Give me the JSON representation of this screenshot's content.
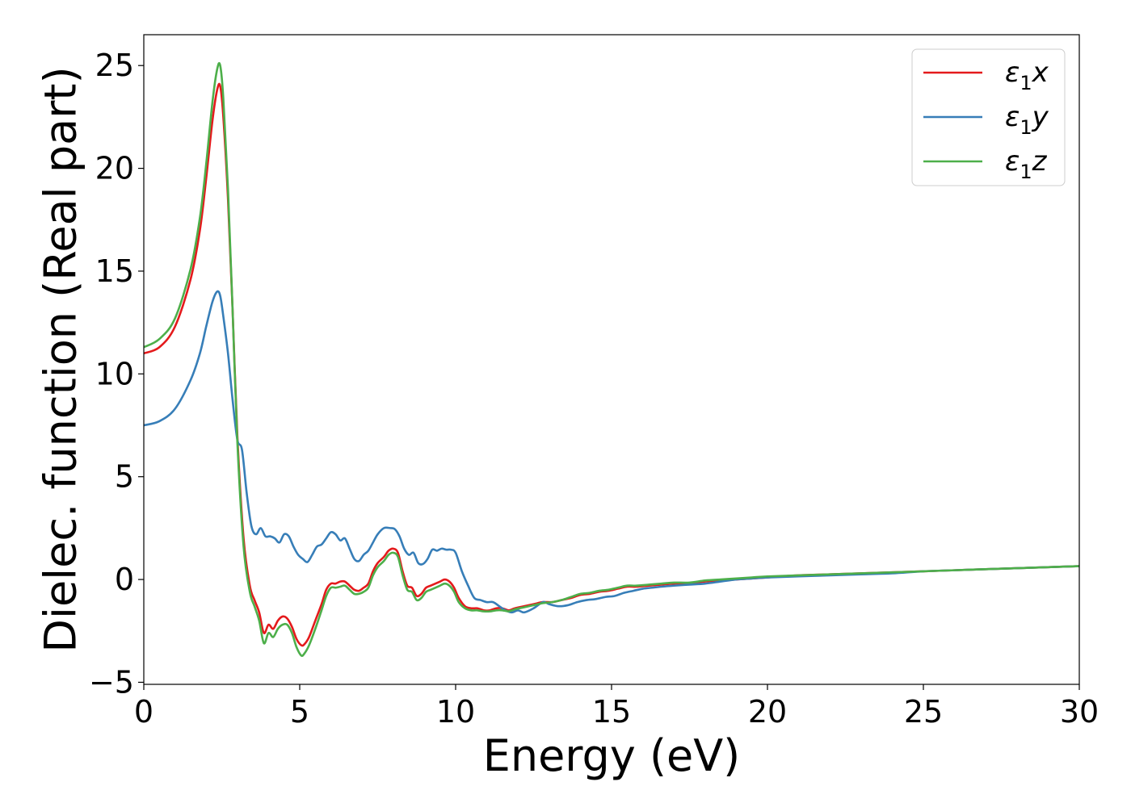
{
  "chart_data": {
    "type": "line",
    "title": "",
    "xlabel": "Energy (eV)",
    "ylabel": "Dielec. function (Real part)",
    "xlim": [
      0,
      30
    ],
    "ylim": [
      -5.1,
      26.5
    ],
    "xticks": [
      0,
      5,
      10,
      15,
      20,
      25,
      30
    ],
    "xtick_labels": [
      "0",
      "5",
      "10",
      "15",
      "20",
      "25",
      "30"
    ],
    "yticks": [
      -5,
      0,
      5,
      10,
      15,
      20,
      25
    ],
    "ytick_labels": [
      "−5",
      "0",
      "5",
      "10",
      "15",
      "20",
      "25"
    ],
    "grid": false,
    "legend_position": "top-right",
    "series": [
      {
        "name": "ε₁x",
        "legend_main": "ε",
        "legend_sub": "1",
        "legend_suffix": "x",
        "color": "#e41a1c",
        "x": [
          0,
          0.5,
          1.0,
          1.5,
          1.8,
          2.0,
          2.2,
          2.35,
          2.45,
          2.55,
          2.7,
          2.85,
          3.0,
          3.2,
          3.4,
          3.55,
          3.7,
          3.85,
          4.0,
          4.15,
          4.3,
          4.45,
          4.6,
          4.75,
          4.9,
          5.05,
          5.15,
          5.3,
          5.5,
          5.7,
          5.85,
          6.0,
          6.15,
          6.3,
          6.45,
          6.6,
          6.75,
          6.9,
          7.05,
          7.2,
          7.35,
          7.5,
          7.7,
          7.85,
          8.0,
          8.15,
          8.3,
          8.45,
          8.6,
          8.75,
          8.9,
          9.05,
          9.2,
          9.35,
          9.5,
          9.65,
          9.8,
          9.95,
          10.1,
          10.3,
          10.5,
          10.7,
          10.9,
          11.1,
          11.3,
          11.5,
          11.7,
          11.9,
          12.2,
          12.5,
          12.8,
          13.1,
          13.4,
          13.7,
          14.0,
          14.3,
          14.6,
          14.9,
          15.2,
          15.5,
          15.8,
          16.2,
          16.6,
          17.0,
          17.5,
          18.0,
          18.5,
          19.0,
          19.5,
          20.0,
          21,
          22,
          23,
          24,
          25,
          26,
          27,
          28,
          29,
          30
        ],
        "y": [
          11.0,
          11.3,
          12.3,
          14.6,
          17.0,
          19.5,
          22.3,
          23.8,
          24.0,
          22.5,
          18.5,
          13.0,
          7.0,
          2.0,
          -0.3,
          -1.0,
          -1.6,
          -2.6,
          -2.2,
          -2.4,
          -2.0,
          -1.8,
          -1.9,
          -2.3,
          -2.9,
          -3.2,
          -3.15,
          -2.8,
          -2.0,
          -1.2,
          -0.5,
          -0.2,
          -0.2,
          -0.1,
          -0.1,
          -0.3,
          -0.5,
          -0.55,
          -0.4,
          -0.2,
          0.4,
          0.8,
          1.1,
          1.4,
          1.5,
          1.3,
          0.4,
          -0.3,
          -0.4,
          -0.8,
          -0.7,
          -0.4,
          -0.3,
          -0.2,
          -0.1,
          0.0,
          -0.1,
          -0.4,
          -0.9,
          -1.3,
          -1.4,
          -1.4,
          -1.5,
          -1.5,
          -1.4,
          -1.4,
          -1.5,
          -1.4,
          -1.3,
          -1.2,
          -1.1,
          -1.1,
          -1.0,
          -0.9,
          -0.75,
          -0.7,
          -0.6,
          -0.55,
          -0.45,
          -0.35,
          -0.35,
          -0.3,
          -0.25,
          -0.2,
          -0.2,
          -0.1,
          -0.05,
          0.0,
          0.05,
          0.1,
          0.2,
          0.25,
          0.3,
          0.35,
          0.4,
          0.45,
          0.5,
          0.55,
          0.6,
          0.65
        ]
      },
      {
        "name": "ε₁y",
        "legend_main": "ε",
        "legend_sub": "1",
        "legend_suffix": "y",
        "color": "#377eb8",
        "x": [
          0,
          0.5,
          1.0,
          1.5,
          1.8,
          2.0,
          2.2,
          2.35,
          2.45,
          2.55,
          2.7,
          2.85,
          3.0,
          3.15,
          3.3,
          3.45,
          3.6,
          3.75,
          3.9,
          4.05,
          4.2,
          4.35,
          4.5,
          4.65,
          4.8,
          4.95,
          5.1,
          5.25,
          5.4,
          5.55,
          5.7,
          5.85,
          6.0,
          6.15,
          6.3,
          6.45,
          6.6,
          6.75,
          6.9,
          7.05,
          7.2,
          7.35,
          7.5,
          7.7,
          7.9,
          8.05,
          8.2,
          8.35,
          8.5,
          8.65,
          8.8,
          8.95,
          9.1,
          9.25,
          9.4,
          9.55,
          9.7,
          9.85,
          10.0,
          10.2,
          10.4,
          10.6,
          10.8,
          11.0,
          11.2,
          11.4,
          11.6,
          11.8,
          12.0,
          12.2,
          12.5,
          12.8,
          13.0,
          13.3,
          13.6,
          13.9,
          14.2,
          14.5,
          14.8,
          15.1,
          15.4,
          15.7,
          16.0,
          16.3,
          16.6,
          17.0,
          17.5,
          18.0,
          18.5,
          19.0,
          19.5,
          20.0,
          21,
          22,
          23,
          24,
          25,
          26,
          27,
          28,
          29,
          30
        ],
        "y": [
          7.5,
          7.7,
          8.3,
          9.7,
          11.0,
          12.3,
          13.5,
          14.0,
          13.8,
          12.8,
          11.0,
          8.7,
          6.8,
          6.3,
          4.2,
          2.6,
          2.2,
          2.5,
          2.1,
          2.1,
          2.0,
          1.8,
          2.2,
          2.1,
          1.6,
          1.2,
          1.0,
          0.85,
          1.2,
          1.6,
          1.7,
          2.0,
          2.3,
          2.2,
          1.9,
          2.0,
          1.5,
          1.0,
          0.9,
          1.2,
          1.4,
          1.8,
          2.2,
          2.5,
          2.5,
          2.45,
          2.1,
          1.5,
          1.2,
          1.3,
          0.8,
          0.75,
          1.0,
          1.45,
          1.4,
          1.5,
          1.45,
          1.45,
          1.3,
          0.4,
          -0.3,
          -0.9,
          -1.0,
          -1.1,
          -1.1,
          -1.3,
          -1.5,
          -1.6,
          -1.5,
          -1.6,
          -1.4,
          -1.1,
          -1.2,
          -1.3,
          -1.25,
          -1.1,
          -1.0,
          -0.95,
          -0.85,
          -0.8,
          -0.65,
          -0.55,
          -0.45,
          -0.4,
          -0.35,
          -0.3,
          -0.25,
          -0.2,
          -0.1,
          0.0,
          0.05,
          0.1,
          0.15,
          0.2,
          0.25,
          0.3,
          0.4,
          0.45,
          0.5,
          0.55,
          0.6,
          0.65
        ]
      },
      {
        "name": "ε₁z",
        "legend_main": "ε",
        "legend_sub": "1",
        "legend_suffix": "z",
        "color": "#4daf4a",
        "x": [
          0,
          0.5,
          1.0,
          1.5,
          1.8,
          2.0,
          2.2,
          2.35,
          2.45,
          2.55,
          2.7,
          2.85,
          3.0,
          3.2,
          3.4,
          3.55,
          3.7,
          3.85,
          4.0,
          4.15,
          4.3,
          4.45,
          4.6,
          4.75,
          4.9,
          5.05,
          5.15,
          5.3,
          5.5,
          5.7,
          5.85,
          6.0,
          6.15,
          6.3,
          6.45,
          6.6,
          6.75,
          6.9,
          7.05,
          7.2,
          7.35,
          7.5,
          7.7,
          7.85,
          8.0,
          8.15,
          8.3,
          8.45,
          8.6,
          8.75,
          8.9,
          9.05,
          9.2,
          9.35,
          9.5,
          9.65,
          9.8,
          9.95,
          10.1,
          10.3,
          10.5,
          10.7,
          10.9,
          11.1,
          11.3,
          11.5,
          11.7,
          11.9,
          12.2,
          12.5,
          12.8,
          13.1,
          13.4,
          13.7,
          14.0,
          14.3,
          14.6,
          14.9,
          15.2,
          15.5,
          15.8,
          16.2,
          16.6,
          17.0,
          17.5,
          18.0,
          18.5,
          19.0,
          19.5,
          20.0,
          21,
          22,
          23,
          24,
          25,
          26,
          27,
          28,
          29,
          30
        ],
        "y": [
          11.3,
          11.7,
          12.7,
          15.1,
          17.6,
          20.2,
          23.2,
          24.8,
          25.0,
          23.4,
          19.0,
          13.0,
          6.7,
          1.6,
          -0.6,
          -1.3,
          -2.0,
          -3.1,
          -2.6,
          -2.8,
          -2.4,
          -2.2,
          -2.2,
          -2.6,
          -3.3,
          -3.7,
          -3.6,
          -3.2,
          -2.4,
          -1.5,
          -0.8,
          -0.4,
          -0.4,
          -0.35,
          -0.3,
          -0.5,
          -0.7,
          -0.7,
          -0.6,
          -0.4,
          0.2,
          0.6,
          0.9,
          1.2,
          1.3,
          1.1,
          0.2,
          -0.5,
          -0.6,
          -1.0,
          -0.9,
          -0.6,
          -0.5,
          -0.4,
          -0.3,
          -0.2,
          -0.3,
          -0.6,
          -1.1,
          -1.4,
          -1.5,
          -1.5,
          -1.55,
          -1.55,
          -1.5,
          -1.5,
          -1.55,
          -1.45,
          -1.35,
          -1.25,
          -1.15,
          -1.1,
          -1.0,
          -0.85,
          -0.7,
          -0.65,
          -0.55,
          -0.5,
          -0.4,
          -0.3,
          -0.3,
          -0.25,
          -0.2,
          -0.15,
          -0.15,
          -0.05,
          0.0,
          0.05,
          0.1,
          0.15,
          0.2,
          0.25,
          0.3,
          0.35,
          0.4,
          0.45,
          0.5,
          0.55,
          0.6,
          0.65
        ]
      }
    ]
  }
}
